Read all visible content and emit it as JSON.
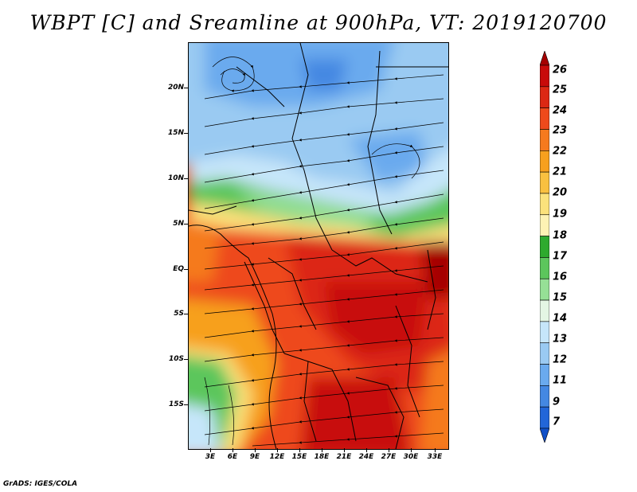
{
  "title": "WBPT [C] and Sreamline at 900hPa, VT: 2019120700",
  "credit": "GrADS: IGES/COLA",
  "y_axis_labels": [
    "20N",
    "15N",
    "10N",
    "5N",
    "EQ",
    "5S",
    "10S",
    "15S"
  ],
  "x_axis_labels": [
    "3E",
    "6E",
    "9E",
    "12E",
    "15E",
    "18E",
    "21E",
    "24E",
    "27E",
    "30E",
    "33E"
  ],
  "colorbar": {
    "labels": [
      "26",
      "25",
      "24",
      "23",
      "22",
      "21",
      "20",
      "19",
      "18",
      "17",
      "16",
      "15",
      "14",
      "13",
      "12",
      "11",
      "9",
      "7"
    ],
    "colors": [
      "#a50000",
      "#c80a0a",
      "#dc2814",
      "#ee4a1c",
      "#f57a1e",
      "#f7a01e",
      "#f9c040",
      "#fbe27c",
      "#fdf2b4",
      "#2eaa2e",
      "#5cc65c",
      "#96e096",
      "#e4f6e4",
      "#c6e6fa",
      "#9acaf2",
      "#6aaaee",
      "#4488e2",
      "#2266d8",
      "#1050c8"
    ]
  },
  "map": {
    "lon_range": [
      0,
      35
    ],
    "lat_range": [
      -20,
      25
    ],
    "field": "wet-bulb potential temperature",
    "overlay": "streamlines"
  }
}
